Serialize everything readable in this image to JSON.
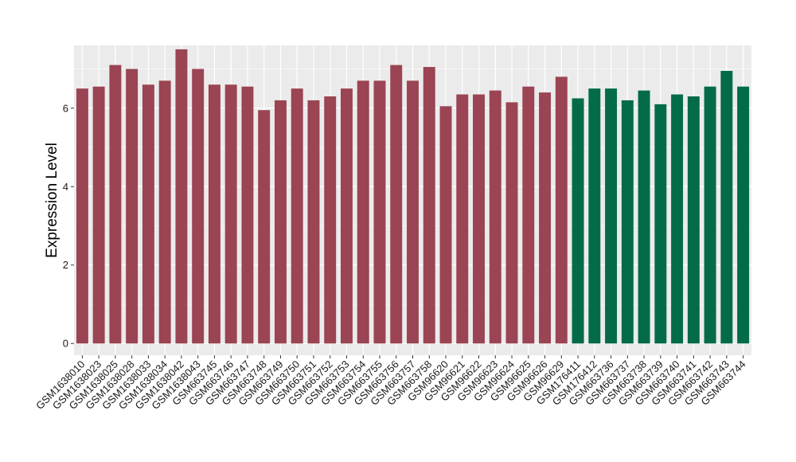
{
  "chart_data": {
    "type": "bar",
    "title": "",
    "xlabel": "",
    "ylabel": "Expression Level",
    "ylim": [
      -0.3,
      7.6
    ],
    "yticks": [
      0,
      2,
      4,
      6
    ],
    "grid": true,
    "legend": "none",
    "colors": {
      "group1": "#9b4453",
      "group2": "#036b47",
      "panel_bg": "#ebebeb",
      "grid": "#ffffff"
    },
    "categories": [
      "GSM1638010",
      "GSM1638023",
      "GSM1638025",
      "GSM1638028",
      "GSM1638033",
      "GSM1638034",
      "GSM1638042",
      "GSM1638043",
      "GSM663745",
      "GSM663746",
      "GSM663747",
      "GSM663748",
      "GSM663749",
      "GSM663750",
      "GSM663751",
      "GSM663752",
      "GSM663753",
      "GSM663754",
      "GSM663755",
      "GSM663756",
      "GSM663757",
      "GSM663758",
      "GSM96620",
      "GSM96621",
      "GSM96622",
      "GSM96623",
      "GSM96624",
      "GSM96625",
      "GSM96626",
      "GSM96629",
      "GSM176411",
      "GSM176412",
      "GSM663736",
      "GSM663737",
      "GSM663738",
      "GSM663739",
      "GSM663740",
      "GSM663741",
      "GSM663742",
      "GSM663743",
      "GSM663744"
    ],
    "values": [
      6.5,
      6.55,
      7.1,
      7.0,
      6.6,
      6.7,
      7.5,
      7.0,
      6.6,
      6.6,
      6.55,
      5.95,
      6.2,
      6.5,
      6.2,
      6.3,
      6.5,
      6.7,
      6.7,
      7.1,
      6.7,
      7.05,
      6.05,
      6.35,
      6.35,
      6.45,
      6.15,
      6.55,
      6.4,
      6.8,
      6.25,
      6.5,
      6.5,
      6.2,
      6.45,
      6.1,
      6.35,
      6.3,
      6.55,
      6.95,
      6.55
    ],
    "groups": [
      "group1",
      "group1",
      "group1",
      "group1",
      "group1",
      "group1",
      "group1",
      "group1",
      "group1",
      "group1",
      "group1",
      "group1",
      "group1",
      "group1",
      "group1",
      "group1",
      "group1",
      "group1",
      "group1",
      "group1",
      "group1",
      "group1",
      "group1",
      "group1",
      "group1",
      "group1",
      "group1",
      "group1",
      "group1",
      "group1",
      "group2",
      "group2",
      "group2",
      "group2",
      "group2",
      "group2",
      "group2",
      "group2",
      "group2",
      "group2",
      "group2"
    ]
  }
}
